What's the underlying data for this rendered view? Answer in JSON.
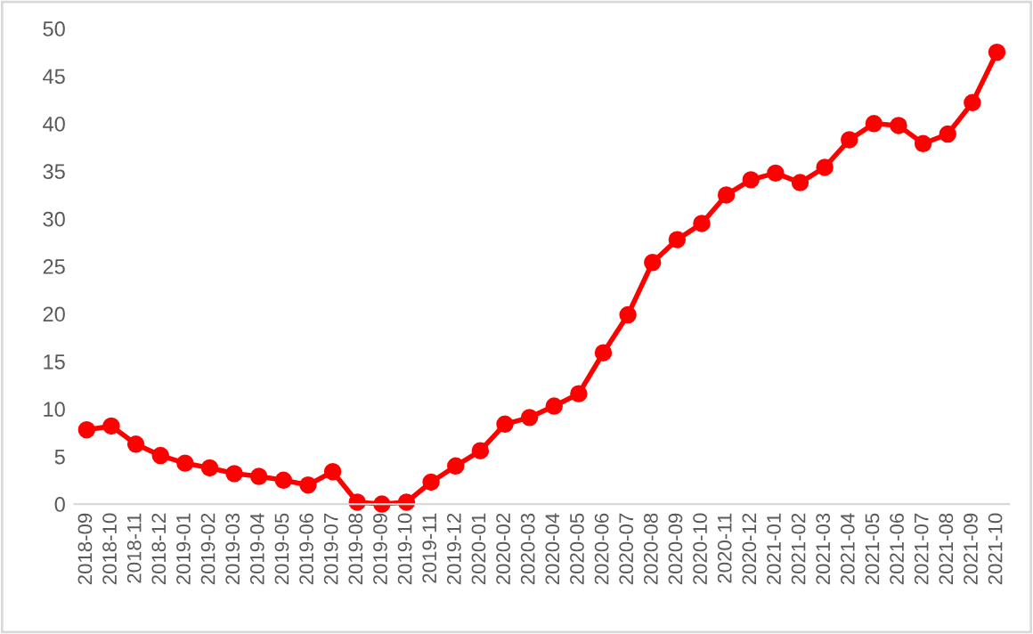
{
  "chart_data": {
    "type": "line",
    "categories": [
      "2018-09",
      "2018-10",
      "2018-11",
      "2018-12",
      "2019-01",
      "2019-02",
      "2019-03",
      "2019-04",
      "2019-05",
      "2019-06",
      "2019-07",
      "2019-08",
      "2019-09",
      "2019-10",
      "2019-11",
      "2019-12",
      "2020-01",
      "2020-02",
      "2020-03",
      "2020-04",
      "2020-05",
      "2020-06",
      "2020-07",
      "2020-08",
      "2020-09",
      "2020-10",
      "2020-11",
      "2020-12",
      "2021-01",
      "2021-02",
      "2021-03",
      "2021-04",
      "2021-05",
      "2021-06",
      "2021-07",
      "2021-08",
      "2021-09",
      "2021-10"
    ],
    "series": [
      {
        "color": "#ff0000",
        "values": [
          7.8,
          8.2,
          6.3,
          5.1,
          4.3,
          3.8,
          3.2,
          2.9,
          2.5,
          2.0,
          3.4,
          0.2,
          0,
          0.2,
          2.3,
          4.0,
          5.6,
          8.4,
          9.1,
          10.3,
          11.6,
          15.9,
          19.9,
          25.4,
          27.8,
          29.5,
          32.5,
          34.1,
          34.8,
          33.8,
          35.4,
          38.3,
          40.0,
          39.8,
          37.9,
          38.9,
          42.2,
          47.5
        ]
      }
    ],
    "ylim": [
      0,
      50
    ],
    "yticks": [
      0,
      5,
      10,
      15,
      20,
      25,
      30,
      35,
      40,
      45,
      50
    ],
    "grid": false,
    "legend": false,
    "marker": "circle",
    "line_style": "solid"
  }
}
